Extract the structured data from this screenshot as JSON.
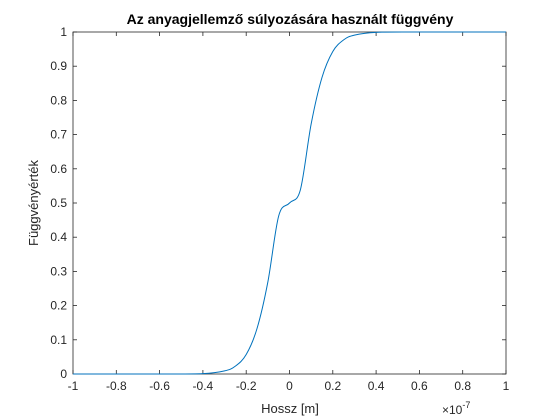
{
  "chart_data": {
    "type": "line",
    "title": "Az anyagjellemző súlyozására használt függvény",
    "xlabel": "Hossz [m]",
    "ylabel": "Függvényérték",
    "x_exponent_base": "×10",
    "x_exponent_power": "-7",
    "xlim": [
      -1e-07,
      1e-07
    ],
    "ylim": [
      0,
      1
    ],
    "x_ticks": [
      -1,
      -0.8,
      -0.6,
      -0.4,
      -0.2,
      0,
      0.2,
      0.4,
      0.6,
      0.8,
      1
    ],
    "x_tick_labels": [
      "-1",
      "-0.8",
      "-0.6",
      "-0.4",
      "-0.2",
      "0",
      "0.2",
      "0.4",
      "0.6",
      "0.8",
      "1"
    ],
    "y_ticks": [
      0,
      0.1,
      0.2,
      0.3,
      0.4,
      0.5,
      0.6,
      0.7,
      0.8,
      0.9,
      1
    ],
    "y_tick_labels": [
      "0",
      "0.1",
      "0.2",
      "0.3",
      "0.4",
      "0.5",
      "0.6",
      "0.7",
      "0.8",
      "0.9",
      "1"
    ],
    "grid": false,
    "line_color": "#0072BD",
    "series": [
      {
        "x": [
          -1e-07,
          -8e-08,
          -6e-08,
          -4e-08,
          -3e-08,
          -2.5e-08,
          -2e-08,
          -1.5e-08,
          -1e-08,
          -5e-09,
          0,
          5e-09,
          1e-08,
          1.5e-08,
          2e-08,
          2.5e-08,
          3e-08,
          4e-08,
          6e-08,
          8e-08,
          1e-07
        ],
        "y": [
          0,
          0,
          0,
          0.001,
          0.009,
          0.023,
          0.057,
          0.133,
          0.269,
          0.462,
          0.5,
          0.538,
          0.731,
          0.867,
          0.943,
          0.977,
          0.991,
          0.999,
          1,
          1,
          1
        ]
      }
    ]
  }
}
